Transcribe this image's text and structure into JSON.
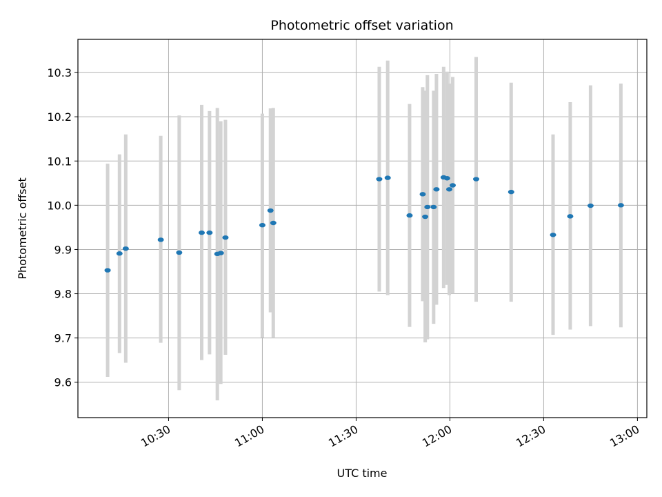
{
  "chart_data": {
    "type": "scatter",
    "title": "Photometric offset variation",
    "xlabel": "UTC time",
    "ylabel": "Photometric offset",
    "xlim": [
      "10:01",
      "13:03"
    ],
    "ylim": [
      9.52,
      10.375
    ],
    "grid": true,
    "x_ticks": [
      "10:30",
      "11:00",
      "11:30",
      "12:00",
      "12:30",
      "13:00"
    ],
    "y_ticks": [
      "9.6",
      "9.7",
      "9.8",
      "9.9",
      "10.0",
      "10.1",
      "10.2",
      "10.3"
    ],
    "marker_color": "#1f77b4",
    "errorbar_color": "#d3d3d3",
    "points": [
      {
        "t": "10:10.5",
        "y": 9.853,
        "lo": 9.612,
        "hi": 10.094
      },
      {
        "t": "10:14.3",
        "y": 9.891,
        "lo": 9.666,
        "hi": 10.115
      },
      {
        "t": "10:16.3",
        "y": 9.902,
        "lo": 9.644,
        "hi": 10.16
      },
      {
        "t": "10:27.5",
        "y": 9.922,
        "lo": 9.689,
        "hi": 10.157
      },
      {
        "t": "10:33.4",
        "y": 9.893,
        "lo": 9.582,
        "hi": 10.203
      },
      {
        "t": "10:40.6",
        "y": 9.938,
        "lo": 9.65,
        "hi": 10.227
      },
      {
        "t": "10:43.1",
        "y": 9.938,
        "lo": 9.663,
        "hi": 10.213
      },
      {
        "t": "10:45.6",
        "y": 9.89,
        "lo": 9.559,
        "hi": 10.22
      },
      {
        "t": "10:46.7",
        "y": 9.892,
        "lo": 9.596,
        "hi": 10.19
      },
      {
        "t": "10:48.2",
        "y": 9.927,
        "lo": 9.662,
        "hi": 10.193
      },
      {
        "t": "11:00.0",
        "y": 9.955,
        "lo": 9.701,
        "hi": 10.207
      },
      {
        "t": "11:02.6",
        "y": 9.988,
        "lo": 9.758,
        "hi": 10.219
      },
      {
        "t": "11:03.5",
        "y": 9.96,
        "lo": 9.7,
        "hi": 10.22
      },
      {
        "t": "11:37.4",
        "y": 10.059,
        "lo": 9.805,
        "hi": 10.313
      },
      {
        "t": "11:40.1",
        "y": 10.062,
        "lo": 9.797,
        "hi": 10.327
      },
      {
        "t": "11:47.1",
        "y": 9.977,
        "lo": 9.725,
        "hi": 10.229
      },
      {
        "t": "11:51.3",
        "y": 10.025,
        "lo": 9.783,
        "hi": 10.267
      },
      {
        "t": "11:52.1",
        "y": 9.974,
        "lo": 9.69,
        "hi": 10.259
      },
      {
        "t": "11:52.8",
        "y": 9.996,
        "lo": 9.697,
        "hi": 10.294
      },
      {
        "t": "11:54.8",
        "y": 9.996,
        "lo": 9.732,
        "hi": 10.259
      },
      {
        "t": "11:55.7",
        "y": 10.036,
        "lo": 9.775,
        "hi": 10.297
      },
      {
        "t": "11:58.0",
        "y": 10.063,
        "lo": 9.813,
        "hi": 10.313
      },
      {
        "t": "11:59.1",
        "y": 10.061,
        "lo": 9.82,
        "hi": 10.302
      },
      {
        "t": "11:59.8",
        "y": 10.036,
        "lo": 9.797,
        "hi": 10.275
      },
      {
        "t": "12:00.9",
        "y": 10.045,
        "lo": 9.8,
        "hi": 10.29
      },
      {
        "t": "12:08.4",
        "y": 10.059,
        "lo": 9.782,
        "hi": 10.335
      },
      {
        "t": "12:19.6",
        "y": 10.03,
        "lo": 9.782,
        "hi": 10.277
      },
      {
        "t": "12:33.0",
        "y": 9.933,
        "lo": 9.707,
        "hi": 10.16
      },
      {
        "t": "12:38.5",
        "y": 9.975,
        "lo": 9.719,
        "hi": 10.233
      },
      {
        "t": "12:45.0",
        "y": 9.999,
        "lo": 9.727,
        "hi": 10.271
      },
      {
        "t": "12:54.7",
        "y": 10.0,
        "lo": 9.724,
        "hi": 10.275
      }
    ]
  }
}
